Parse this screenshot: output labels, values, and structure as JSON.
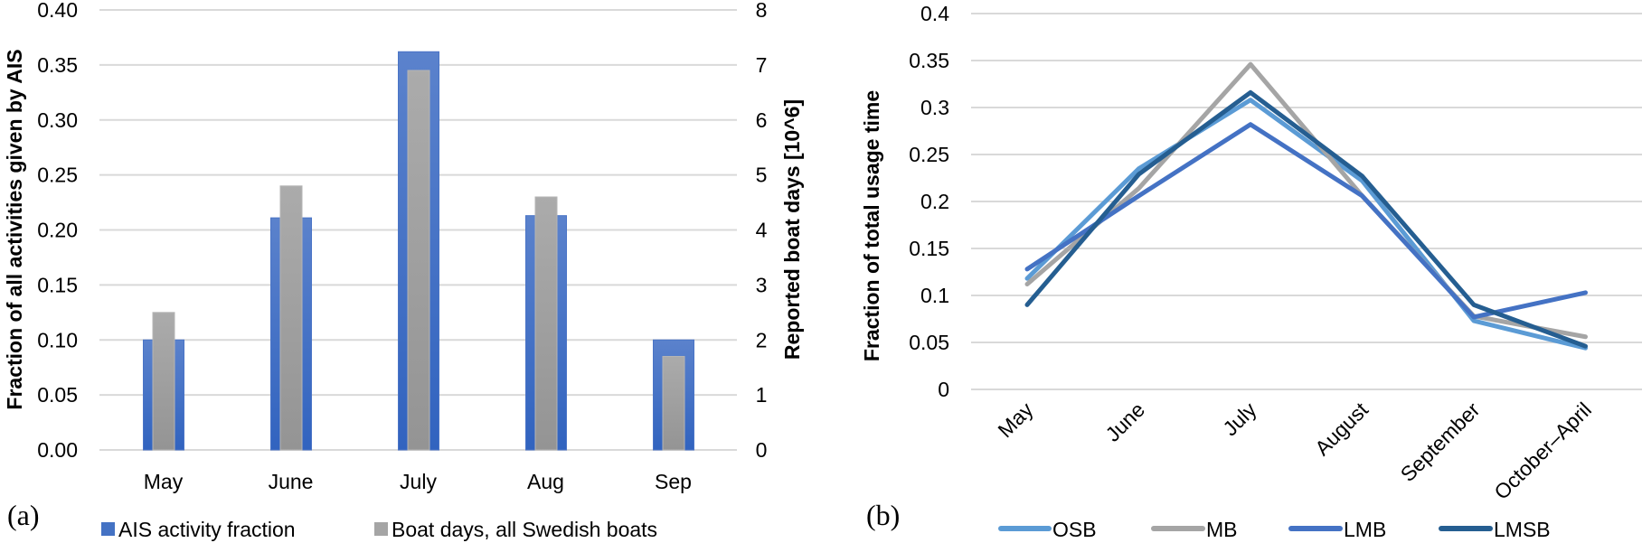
{
  "chart_data": [
    {
      "id": "a",
      "type": "bar",
      "panel_label": "(a)",
      "categories": [
        "May",
        "June",
        "July",
        "Aug",
        "Sep"
      ],
      "series": [
        {
          "name": "AIS activity fraction",
          "axis": "left",
          "color": "#4472c4",
          "values": [
            0.1,
            0.211,
            0.362,
            0.213,
            0.1
          ]
        },
        {
          "name": "Boat days, all Swedish boats",
          "axis": "right",
          "color": "#a5a5a5",
          "values": [
            2.5,
            4.8,
            6.9,
            4.6,
            1.7
          ]
        }
      ],
      "ylabel": "Fraction of all activities given by AIS",
      "ylim": [
        0,
        0.4
      ],
      "yticks": [
        "0.00",
        "0.05",
        "0.10",
        "0.15",
        "0.20",
        "0.25",
        "0.30",
        "0.35",
        "0.40"
      ],
      "y2label": "Reported boat days [10^6]",
      "y2lim": [
        0,
        8
      ],
      "y2ticks": [
        "0",
        "1",
        "2",
        "3",
        "4",
        "5",
        "6",
        "7",
        "8"
      ],
      "grid": true,
      "legend": "bottom"
    },
    {
      "id": "b",
      "type": "line",
      "panel_label": "(b)",
      "categories": [
        "May",
        "June",
        "July",
        "August",
        "September",
        "October–April"
      ],
      "series": [
        {
          "name": "OSB",
          "color": "#5b9bd5",
          "values": [
            0.118,
            0.235,
            0.308,
            0.222,
            0.073,
            0.044
          ]
        },
        {
          "name": "MB",
          "color": "#a5a5a5",
          "values": [
            0.112,
            0.214,
            0.346,
            0.206,
            0.078,
            0.056
          ]
        },
        {
          "name": "LMB",
          "color": "#4472c4",
          "values": [
            0.128,
            0.206,
            0.282,
            0.206,
            0.077,
            0.103
          ]
        },
        {
          "name": "LMSB",
          "color": "#255e91",
          "values": [
            0.09,
            0.229,
            0.316,
            0.227,
            0.09,
            0.046
          ]
        }
      ],
      "ylabel": "Fraction of total usage time",
      "ylim": [
        0,
        0.4
      ],
      "yticks": [
        "0",
        "0.05",
        "0.1",
        "0.15",
        "0.2",
        "0.25",
        "0.3",
        "0.35",
        "0.4"
      ],
      "grid": true,
      "legend": "bottom"
    }
  ]
}
